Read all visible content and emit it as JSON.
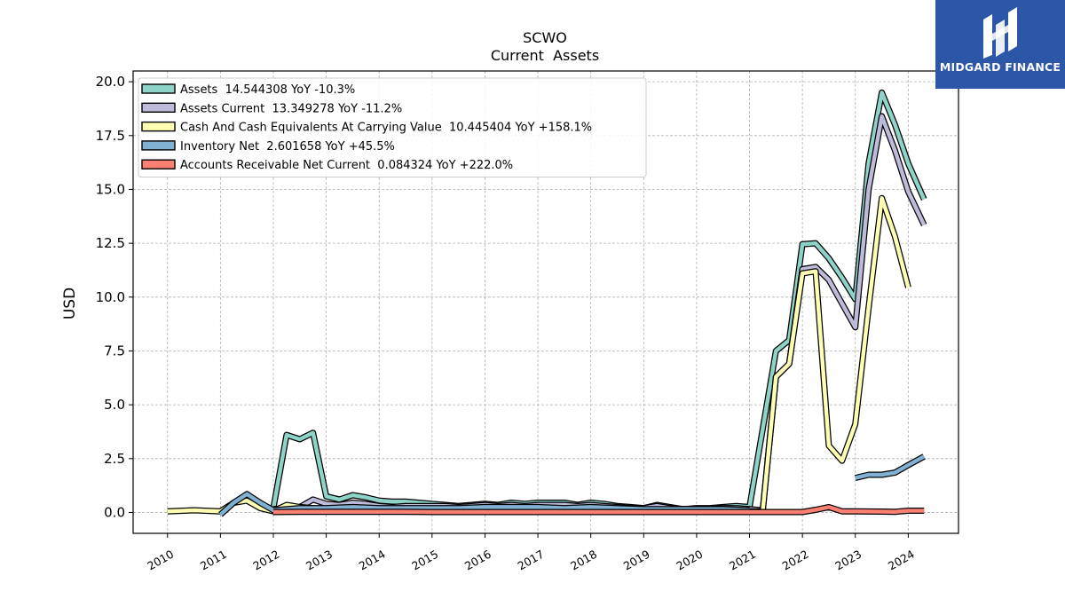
{
  "chart_data": {
    "type": "line",
    "title": "SCWO",
    "subtitle": "Current  Assets",
    "ylabel": "USD",
    "xlabel": "",
    "xlim": [
      2009.35,
      2024.95
    ],
    "ylim": [
      -0.97,
      20.5
    ],
    "yticks": [
      0.0,
      2.5,
      5.0,
      7.5,
      10.0,
      12.5,
      15.0,
      17.5,
      20.0
    ],
    "ytick_labels": [
      "0.0",
      "2.5",
      "5.0",
      "7.5",
      "10.0",
      "12.5",
      "15.0",
      "17.5",
      "20.0"
    ],
    "xticks": [
      2010,
      2011,
      2012,
      2013,
      2014,
      2015,
      2016,
      2017,
      2018,
      2019,
      2020,
      2021,
      2022,
      2023,
      2024
    ],
    "xtick_labels": [
      "2010",
      "2011",
      "2012",
      "2013",
      "2014",
      "2015",
      "2016",
      "2017",
      "2018",
      "2019",
      "2020",
      "2021",
      "2022",
      "2023",
      "2024"
    ],
    "grid": true,
    "legend_position": "top-left",
    "series": [
      {
        "name": "Assets  14.544308 YoY -10.3%",
        "color": "#8dd3c7",
        "points": [
          [
            2012.0,
            0.2
          ],
          [
            2012.25,
            3.6
          ],
          [
            2012.5,
            3.4
          ],
          [
            2012.75,
            3.7
          ],
          [
            2013.0,
            0.75
          ],
          [
            2013.25,
            0.6
          ],
          [
            2013.5,
            0.8
          ],
          [
            2013.75,
            0.7
          ],
          [
            2014.0,
            0.55
          ],
          [
            2014.25,
            0.5
          ],
          [
            2014.5,
            0.5
          ],
          [
            2014.75,
            0.45
          ],
          [
            2015.0,
            0.4
          ],
          [
            2015.25,
            0.35
          ],
          [
            2015.5,
            0.3
          ],
          [
            2015.75,
            0.35
          ],
          [
            2016.0,
            0.4
          ],
          [
            2016.25,
            0.35
          ],
          [
            2016.5,
            0.45
          ],
          [
            2016.75,
            0.4
          ],
          [
            2017.0,
            0.45
          ],
          [
            2017.25,
            0.45
          ],
          [
            2017.5,
            0.45
          ],
          [
            2017.75,
            0.35
          ],
          [
            2018.0,
            0.45
          ],
          [
            2018.25,
            0.4
          ],
          [
            2018.5,
            0.3
          ],
          [
            2018.75,
            0.25
          ],
          [
            2019.0,
            0.2
          ],
          [
            2019.25,
            0.35
          ],
          [
            2019.5,
            0.25
          ],
          [
            2019.75,
            0.15
          ],
          [
            2020.0,
            0.2
          ],
          [
            2020.25,
            0.2
          ],
          [
            2020.5,
            0.25
          ],
          [
            2020.75,
            0.3
          ],
          [
            2021.0,
            0.25
          ],
          [
            2021.5,
            7.5
          ],
          [
            2021.75,
            8.0
          ],
          [
            2022.0,
            12.45
          ],
          [
            2022.25,
            12.5
          ],
          [
            2022.5,
            11.8
          ],
          [
            2022.75,
            10.9
          ],
          [
            2023.0,
            9.9
          ],
          [
            2023.25,
            16.2
          ],
          [
            2023.5,
            19.5
          ],
          [
            2023.75,
            18.0
          ],
          [
            2024.0,
            16.2
          ],
          [
            2024.3,
            14.54
          ]
        ]
      },
      {
        "name": "Assets Current  13.349278 YoY -11.2%",
        "color": "#bebada",
        "points": [
          [
            2012.0,
            0.15
          ],
          [
            2012.25,
            0.2
          ],
          [
            2012.5,
            0.25
          ],
          [
            2012.75,
            0.6
          ],
          [
            2013.0,
            0.4
          ],
          [
            2013.25,
            0.35
          ],
          [
            2013.5,
            0.45
          ],
          [
            2013.75,
            0.4
          ],
          [
            2014.0,
            0.3
          ],
          [
            2014.25,
            0.25
          ],
          [
            2014.5,
            0.3
          ],
          [
            2014.75,
            0.3
          ],
          [
            2015.0,
            0.3
          ],
          [
            2015.25,
            0.3
          ],
          [
            2015.5,
            0.25
          ],
          [
            2015.75,
            0.3
          ],
          [
            2016.0,
            0.35
          ],
          [
            2016.25,
            0.3
          ],
          [
            2016.5,
            0.35
          ],
          [
            2016.75,
            0.3
          ],
          [
            2017.0,
            0.35
          ],
          [
            2017.25,
            0.35
          ],
          [
            2017.5,
            0.35
          ],
          [
            2017.75,
            0.3
          ],
          [
            2018.0,
            0.35
          ],
          [
            2018.25,
            0.3
          ],
          [
            2018.5,
            0.25
          ],
          [
            2018.75,
            0.2
          ],
          [
            2019.0,
            0.2
          ],
          [
            2019.25,
            0.3
          ],
          [
            2019.5,
            0.2
          ],
          [
            2019.75,
            0.15
          ],
          [
            2020.0,
            0.15
          ],
          [
            2020.25,
            0.15
          ],
          [
            2020.5,
            0.2
          ],
          [
            2020.75,
            0.2
          ],
          [
            2021.0,
            0.15
          ],
          [
            2021.25,
            0.1
          ],
          [
            2021.5,
            6.3
          ],
          [
            2021.75,
            6.9
          ],
          [
            2022.0,
            11.3
          ],
          [
            2022.25,
            11.4
          ],
          [
            2022.5,
            10.8
          ],
          [
            2022.75,
            9.7
          ],
          [
            2023.0,
            8.6
          ],
          [
            2023.25,
            15.0
          ],
          [
            2023.5,
            18.4
          ],
          [
            2023.75,
            16.8
          ],
          [
            2024.0,
            14.9
          ],
          [
            2024.3,
            13.35
          ]
        ]
      },
      {
        "name": "Cash And Cash Equivalents At Carrying Value  10.445404 YoY +158.1%",
        "color": "#ffffb3",
        "points": [
          [
            2010.0,
            0.05
          ],
          [
            2010.5,
            0.1
          ],
          [
            2011.0,
            0.05
          ],
          [
            2011.25,
            0.45
          ],
          [
            2011.5,
            0.55
          ],
          [
            2011.75,
            0.2
          ],
          [
            2012.0,
            0.05
          ],
          [
            2012.25,
            0.35
          ],
          [
            2012.5,
            0.25
          ],
          [
            2012.75,
            0.2
          ],
          [
            2013.0,
            0.15
          ],
          [
            2013.25,
            0.15
          ],
          [
            2013.5,
            0.2
          ],
          [
            2013.75,
            0.15
          ],
          [
            2014.0,
            0.15
          ],
          [
            2014.5,
            0.15
          ],
          [
            2015.0,
            0.1
          ],
          [
            2015.5,
            0.1
          ],
          [
            2016.0,
            0.1
          ],
          [
            2016.5,
            0.1
          ],
          [
            2017.0,
            0.1
          ],
          [
            2017.5,
            0.1
          ],
          [
            2018.0,
            0.1
          ],
          [
            2018.5,
            0.1
          ],
          [
            2019.0,
            0.1
          ],
          [
            2019.5,
            0.1
          ],
          [
            2020.0,
            0.1
          ],
          [
            2020.5,
            0.1
          ],
          [
            2021.0,
            0.05
          ],
          [
            2021.25,
            0.05
          ],
          [
            2021.5,
            6.3
          ],
          [
            2021.75,
            6.9
          ],
          [
            2022.0,
            11.1
          ],
          [
            2022.25,
            11.2
          ],
          [
            2022.5,
            3.1
          ],
          [
            2022.75,
            2.4
          ],
          [
            2023.0,
            4.1
          ],
          [
            2023.25,
            9.5
          ],
          [
            2023.5,
            14.6
          ],
          [
            2023.75,
            12.8
          ],
          [
            2024.0,
            10.45
          ]
        ]
      },
      {
        "name": "Inventory Net  2.601658 YoY +45.5%",
        "color": "#80b1d3",
        "points": [
          [
            2011.0,
            -0.1
          ],
          [
            2011.25,
            0.45
          ],
          [
            2011.5,
            0.85
          ],
          [
            2011.75,
            0.45
          ],
          [
            2012.0,
            0.1
          ],
          [
            2012.5,
            0.2
          ],
          [
            2013.0,
            0.2
          ],
          [
            2013.5,
            0.25
          ],
          [
            2014.0,
            0.2
          ],
          [
            2014.5,
            0.2
          ],
          [
            2015.0,
            0.2
          ],
          [
            2015.5,
            0.2
          ],
          [
            2016.0,
            0.25
          ],
          [
            2016.5,
            0.25
          ],
          [
            2017.0,
            0.25
          ],
          [
            2017.5,
            0.2
          ],
          [
            2018.0,
            0.25
          ],
          [
            2018.5,
            0.2
          ],
          [
            2019.0,
            0.15
          ],
          [
            2019.5,
            0.15
          ],
          [
            2020.0,
            0.15
          ],
          [
            2020.5,
            0.15
          ],
          [
            2021.0,
            0.1
          ],
          null,
          [
            2023.0,
            1.6
          ],
          [
            2023.25,
            1.75
          ],
          [
            2023.5,
            1.75
          ],
          [
            2023.75,
            1.85
          ],
          [
            2024.0,
            2.2
          ],
          [
            2024.3,
            2.6
          ]
        ]
      },
      {
        "name": "Accounts Receivable Net Current  0.084324 YoY +222.0%",
        "color": "#fb8072",
        "points": [
          [
            2012.0,
            0.02
          ],
          [
            2012.5,
            0.03
          ],
          [
            2013.0,
            0.03
          ],
          [
            2013.5,
            0.03
          ],
          [
            2014.0,
            0.03
          ],
          [
            2014.5,
            0.03
          ],
          [
            2015.0,
            0.02
          ],
          [
            2015.5,
            0.02
          ],
          [
            2016.0,
            0.02
          ],
          [
            2016.5,
            0.02
          ],
          [
            2017.0,
            0.02
          ],
          [
            2017.5,
            0.02
          ],
          [
            2018.0,
            0.02
          ],
          [
            2018.5,
            0.02
          ],
          [
            2019.0,
            0.02
          ],
          [
            2019.5,
            0.02
          ],
          [
            2020.0,
            0.02
          ],
          [
            2020.5,
            0.02
          ],
          [
            2021.0,
            0.02
          ],
          [
            2021.5,
            0.02
          ],
          [
            2022.0,
            0.02
          ],
          [
            2022.25,
            0.12
          ],
          [
            2022.5,
            0.25
          ],
          [
            2022.75,
            0.05
          ],
          [
            2023.0,
            0.05
          ],
          [
            2023.5,
            0.04
          ],
          [
            2023.75,
            0.03
          ],
          [
            2024.0,
            0.08
          ],
          [
            2024.3,
            0.08
          ]
        ]
      }
    ]
  },
  "brand": {
    "name": "MIDGARD FINANCE",
    "icon": "midgard-logo-icon"
  }
}
